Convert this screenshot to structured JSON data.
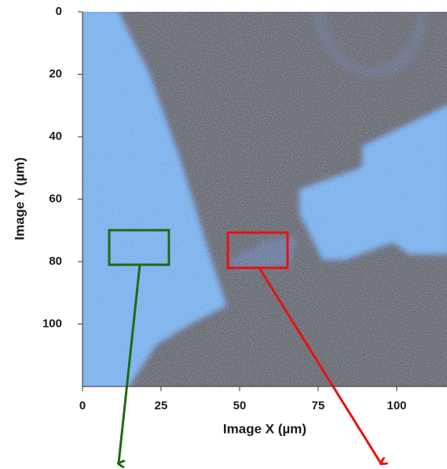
{
  "chart_data": {
    "type": "image",
    "x_label": "Image X (µm)",
    "y_label": "Image Y (µm)",
    "xlim": [
      0,
      116
    ],
    "xticks": [
      0,
      25,
      50,
      75,
      100
    ],
    "ylim": [
      0,
      120
    ],
    "yticks": [
      0,
      20,
      40,
      60,
      80,
      100
    ],
    "y_inverted": true
  }
}
